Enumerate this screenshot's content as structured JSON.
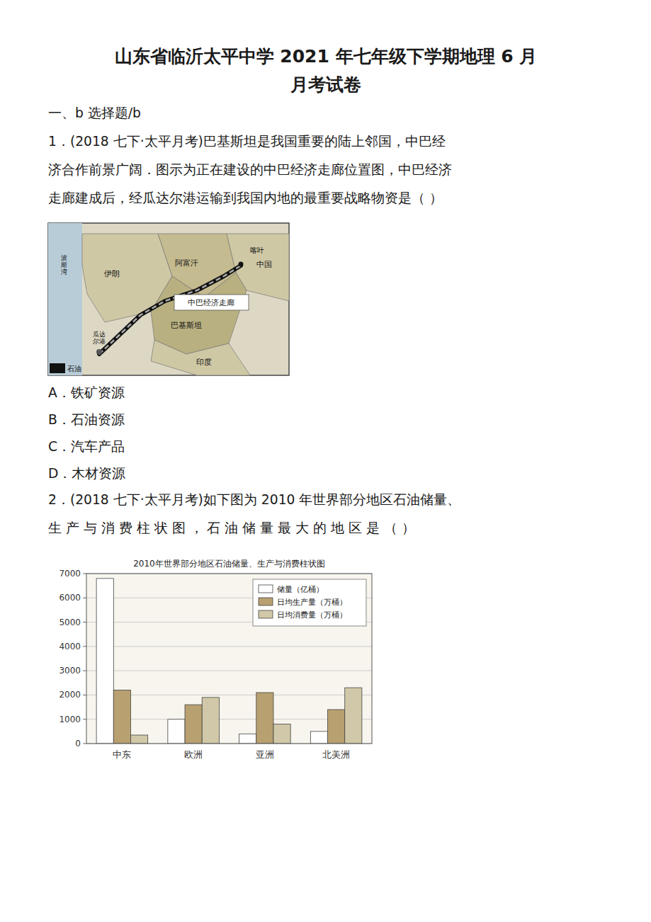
{
  "page": {
    "title_line1": "山东省临沂太平中学 2021 年七年级下学期地理 6 月",
    "title_line2": "月考试卷",
    "section": "一、b 选择题/b",
    "q1_text_lines": [
      "1．(2018 七下·太平月考)巴基斯坦是我国重要的陆上邻国，中巴经",
      "济合作前景广阔．图示为正在建设的中巴经济走廊位置图，中巴经济",
      "走廊建成后，经瓜达尔港运输到我国内地的最重要战略物资是（  ）"
    ],
    "map_labels": [
      "中巴经济走廊",
      "伊朗",
      "阿富汗",
      "喀叶",
      "中国",
      "巴基斯坦",
      "印度",
      "瓜达\n尔港",
      "波\n斯\n湾",
      "石油"
    ],
    "options_q1": [
      "A．铁矿资源",
      "B．石油资源",
      "C．汽车产品",
      "D．木材资源"
    ],
    "q2_text_lines": [
      "2．(2018 七下·太平月考)如下图为 2010 年世界部分地区石油储量、",
      "生 产 与 消 费 柱 状 图 ，  石 油 储 量 最 大 的 地 区 是 （   ）"
    ]
  },
  "chart_data": {
    "type": "bar",
    "title": "2010年世界部分地区石油储量、生产与消费柱状图",
    "categories": [
      "中东",
      "欧洲",
      "亚洲",
      "北美洲"
    ],
    "series": [
      {
        "name": "储量（亿桶）",
        "color": "#ffffff",
        "values": [
          6800,
          1000,
          400,
          500
        ]
      },
      {
        "name": "日均生产量（万桶）",
        "color": "#b8a070",
        "values": [
          2200,
          1600,
          2100,
          1400
        ]
      },
      {
        "name": "日均消费量（万桶）",
        "color": "#d0c8a8",
        "values": [
          350,
          1900,
          800,
          2300
        ]
      }
    ],
    "ylim": [
      0,
      7000
    ],
    "yticks": [
      0,
      1000,
      2000,
      3000,
      4000,
      5000,
      6000,
      7000
    ],
    "grid": true,
    "legend": "upper right"
  }
}
